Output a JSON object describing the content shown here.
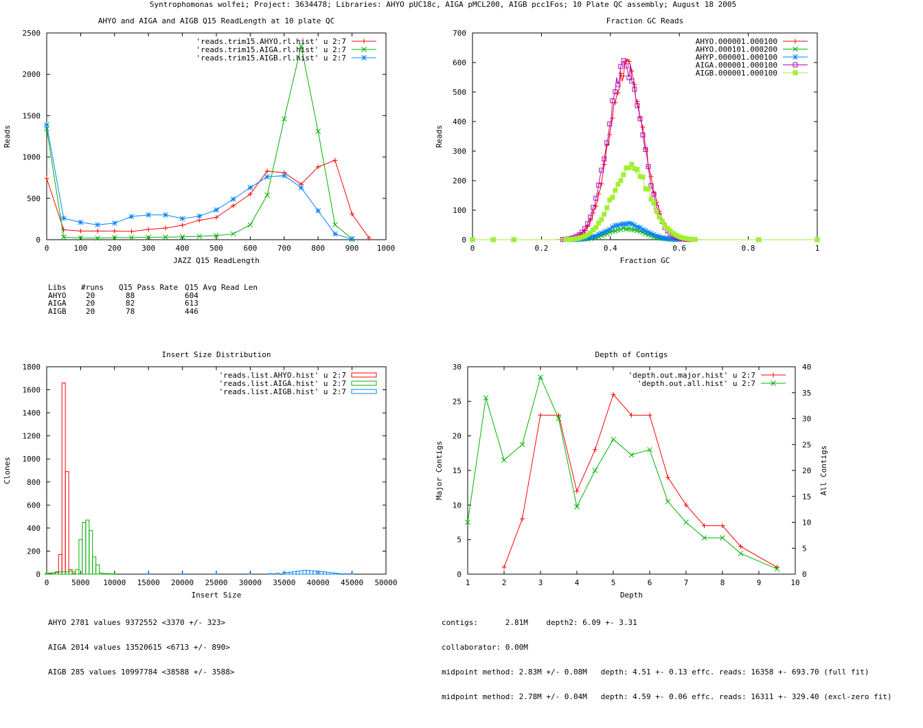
{
  "page_title": "Syntrophomonas wolfei; Project: 3634478; Libraries: AHYO pUC18c, AIGA pMCL200, AIGB pcc1Fos; 10 Plate QC assembly; August 18 2005",
  "chart_data": [
    {
      "id": "readlength",
      "type": "line",
      "title": "AHYO and AIGA and AIGB Q15 ReadLength at 10 plate QC",
      "xlabel": "JAZZ Q15 ReadLength",
      "ylabel": "Reads",
      "xlim": [
        0,
        1000
      ],
      "ylim": [
        0,
        2500
      ],
      "xticks": [
        0,
        100,
        200,
        300,
        400,
        500,
        600,
        700,
        800,
        900,
        1000
      ],
      "yticks": [
        0,
        500,
        1000,
        1500,
        2000,
        2500
      ],
      "legend_position": "top-right",
      "series": [
        {
          "name": "'reads.trim15.AHYO.rl.hist' u 2:7",
          "color": "#ff0000",
          "marker": "plus",
          "x": [
            0,
            50,
            100,
            150,
            200,
            250,
            300,
            350,
            400,
            450,
            500,
            550,
            600,
            650,
            700,
            750,
            800,
            850,
            900,
            950
          ],
          "y": [
            740,
            120,
            105,
            105,
            105,
            100,
            125,
            140,
            175,
            235,
            270,
            410,
            550,
            830,
            810,
            670,
            880,
            960,
            310,
            20
          ]
        },
        {
          "name": "'reads.trim15.AIGA.rl.hist' u 2:7",
          "color": "#00b000",
          "marker": "cross",
          "x": [
            0,
            50,
            100,
            150,
            200,
            250,
            300,
            350,
            400,
            450,
            500,
            550,
            600,
            650,
            700,
            750,
            800,
            850,
            900
          ],
          "y": [
            1340,
            30,
            20,
            20,
            25,
            25,
            30,
            30,
            35,
            40,
            50,
            70,
            180,
            540,
            1460,
            2340,
            1310,
            180,
            10
          ]
        },
        {
          "name": "'reads.trim15.AIGB.rl.hist' u 2:7",
          "color": "#0080ff",
          "marker": "star",
          "x": [
            0,
            50,
            100,
            150,
            200,
            250,
            300,
            350,
            400,
            450,
            500,
            550,
            600,
            650,
            700,
            750,
            800,
            850,
            900
          ],
          "y": [
            1390,
            260,
            210,
            180,
            200,
            280,
            300,
            300,
            255,
            285,
            360,
            490,
            630,
            760,
            775,
            630,
            350,
            70,
            5
          ]
        }
      ]
    },
    {
      "id": "gc",
      "type": "line",
      "title": "Fraction GC Reads",
      "xlabel": "Fraction GC",
      "ylabel": "Reads",
      "xlim": [
        0,
        1
      ],
      "ylim": [
        0,
        700
      ],
      "xticks": [
        0,
        0.2,
        0.4,
        0.6,
        0.8,
        1
      ],
      "yticks": [
        0,
        100,
        200,
        300,
        400,
        500,
        600,
        700
      ],
      "legend_position": "top-right",
      "series": [
        {
          "name": "AHYO.000001.000100",
          "color": "#ff0000",
          "marker": "plus",
          "peak": 0.447,
          "width": 0.05,
          "amp": 580,
          "x": [
            0,
            1
          ],
          "y": [
            0,
            0
          ]
        },
        {
          "name": "AHYO.000101.000200",
          "color": "#00b000",
          "marker": "cross",
          "peak": 0.445,
          "width": 0.05,
          "amp": 38,
          "x": [
            0,
            1
          ],
          "y": [
            0,
            0
          ]
        },
        {
          "name": "AHYP.000001.000100",
          "color": "#0080ff",
          "marker": "star",
          "peak": 0.445,
          "width": 0.052,
          "amp": 55,
          "x": [
            0,
            1
          ],
          "y": [
            0,
            0
          ]
        },
        {
          "name": "AIGA.000001.000100",
          "color": "#b000b0",
          "marker": "box",
          "peak": 0.443,
          "width": 0.05,
          "amp": 590,
          "x": [
            0,
            1
          ],
          "y": [
            0,
            0
          ]
        },
        {
          "name": "AIGB.000001.000100",
          "color": "#a0f030",
          "marker": "filledbox",
          "peak": 0.46,
          "width": 0.055,
          "amp": 245,
          "x": [
            0,
            1
          ],
          "y": [
            0,
            0
          ]
        }
      ]
    },
    {
      "id": "insert",
      "type": "bar",
      "title": "Insert Size Distribution",
      "xlabel": "Insert Size",
      "ylabel": "Clones",
      "xlim": [
        0,
        50000
      ],
      "ylim": [
        0,
        1800
      ],
      "xticks": [
        0,
        5000,
        10000,
        15000,
        20000,
        25000,
        30000,
        35000,
        40000,
        45000,
        50000
      ],
      "yticks": [
        0,
        200,
        400,
        600,
        800,
        1000,
        1200,
        1400,
        1600,
        1800
      ],
      "legend_position": "top-right",
      "series": [
        {
          "name": "'reads.list.AHYO.hist' u 2:7",
          "color": "#ff0000",
          "binwidth": 500,
          "x": [
            500,
            1000,
            1500,
            2000,
            2500,
            3000,
            3500,
            4000
          ],
          "y": [
            5,
            10,
            20,
            170,
            1660,
            890,
            40,
            5
          ]
        },
        {
          "name": "'reads.list.AIGA.hist' u 2:7",
          "color": "#00b000",
          "binwidth": 500,
          "x": [
            0,
            500,
            1000,
            1500,
            2000,
            2500,
            3000,
            3500,
            4000,
            4500,
            5000,
            5500,
            6000,
            6500,
            7000,
            7500,
            8000,
            8500,
            9000,
            9500,
            10000
          ],
          "y": [
            5,
            10,
            10,
            15,
            20,
            20,
            20,
            25,
            20,
            40,
            300,
            450,
            470,
            380,
            150,
            80,
            10,
            5,
            5,
            3,
            2
          ]
        },
        {
          "name": "'reads.list.AIGB.hist' u 2:7",
          "color": "#0080ff",
          "binwidth": 500,
          "x": [
            15000,
            20000,
            25000,
            30000,
            33000,
            34000,
            35000,
            35500,
            36000,
            36500,
            37000,
            37500,
            38000,
            38500,
            39000,
            39500,
            40000,
            40500,
            41000,
            41500,
            42000,
            42500,
            43000,
            44000,
            45000
          ],
          "y": [
            2,
            2,
            2,
            3,
            5,
            8,
            12,
            15,
            18,
            22,
            26,
            30,
            34,
            32,
            30,
            28,
            25,
            22,
            20,
            16,
            12,
            9,
            6,
            4,
            3
          ]
        }
      ]
    },
    {
      "id": "depth",
      "type": "line",
      "title": "Depth of Contigs",
      "xlabel": "Depth",
      "ylabel": "Major Contigs",
      "y2label": "All Contigs",
      "xlim": [
        1,
        10
      ],
      "ylim": [
        0,
        30
      ],
      "y2lim": [
        0,
        40
      ],
      "xticks": [
        1,
        2,
        3,
        4,
        5,
        6,
        7,
        8,
        9,
        10
      ],
      "yticks": [
        0,
        5,
        10,
        15,
        20,
        25,
        30
      ],
      "y2ticks": [
        0,
        5,
        10,
        15,
        20,
        25,
        30,
        35,
        40
      ],
      "legend_position": "top-right",
      "series": [
        {
          "name": "'depth.out.major.hist' u 2:7",
          "color": "#ff0000",
          "marker": "plus",
          "axis": "y1",
          "x": [
            2,
            2.5,
            3,
            3.5,
            4,
            4.5,
            5,
            5.5,
            6,
            6.5,
            7,
            7.5,
            8,
            8.5,
            9.5
          ],
          "y": [
            1,
            8,
            23,
            23,
            12,
            18,
            26,
            23,
            23,
            14,
            10,
            7,
            7,
            4,
            1
          ]
        },
        {
          "name": "'depth.out.all.hist' u 2:7",
          "color": "#00b000",
          "marker": "cross",
          "axis": "y2",
          "x": [
            1,
            1.5,
            2,
            2.5,
            3,
            3.5,
            4,
            4.5,
            5,
            5.5,
            6,
            6.5,
            7,
            7.5,
            8,
            8.5,
            9.5
          ],
          "y": [
            10,
            34,
            22,
            25,
            38,
            30,
            13,
            20,
            26,
            23,
            24,
            14,
            10,
            7,
            7,
            4,
            1
          ]
        }
      ]
    }
  ],
  "readlength_stats": {
    "headers": [
      "Libs",
      "#runs",
      "Q15 Pass Rate",
      "Q15 Avg Read Len"
    ],
    "rows": [
      [
        "AHYO",
        "20",
        "88",
        "604"
      ],
      [
        "AIGA",
        "20",
        "82",
        "613"
      ],
      [
        "AIGB",
        "20",
        "78",
        "446"
      ]
    ]
  },
  "insert_stats": [
    "AHYO 2781 values 9372552 <3370 +/- 323>",
    "AIGA 2014 values 13520615 <6713 +/- 890>",
    "AIGB 285 values 10997784 <38588 +/- 3588>"
  ],
  "depth_stats": [
    "contigs:      2.81M    depth2: 6.09 +- 3.31",
    "collaborator: 0.00M",
    "midpoint method: 2.83M +/- 0.08M   depth: 4.51 +- 0.13 effc. reads: 16358 +- 693.70 (full fit)",
    "midpoint method: 2.78M +/- 0.04M   depth: 4.59 +- 0.06 effc. reads: 16311 +- 329.40 (excl-zero fit)"
  ]
}
